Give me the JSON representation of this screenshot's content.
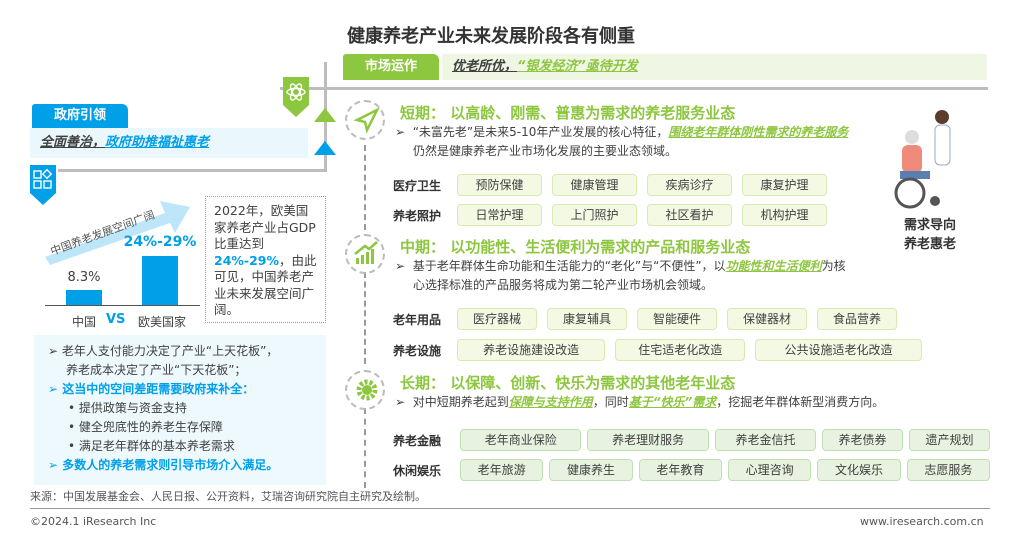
{
  "title": "健康养老产业未来发展阶段各有侧重",
  "market": {
    "label": "市场运作",
    "slogan_a": "优老所优，",
    "slogan_b": "“银发经济”亟待开发"
  },
  "government": {
    "label": "政府引领",
    "slogan_a": "全面善治，",
    "slogan_b": "政府助推福祉惠老"
  },
  "chart_data": {
    "type": "bar",
    "title": "中国养老发展空间广阔",
    "categories": [
      "中国",
      "欧美国家"
    ],
    "value_labels": [
      "8.3%",
      "24%-29%"
    ],
    "values": [
      8.3,
      26.5
    ],
    "vs": "VS"
  },
  "gdp_note": {
    "a": "2022年，欧美国家养老产业占GDP比重达到",
    "b": "24%-29%",
    "c": "，由此可见，中国养老产业未来发展空间广阔。"
  },
  "left_bullets": [
    {
      "type": "arrow",
      "text": "老年人支付能力决定了产业“上天花板”，"
    },
    {
      "type": "cont",
      "text": "养老成本决定了产业“下天花板”；"
    },
    {
      "type": "arrow-blue",
      "text": "这当中的空间差距需要政府来补全："
    },
    {
      "type": "dot",
      "text": "提供政策与资金支持"
    },
    {
      "type": "dot",
      "text": "健全兜底性的养老生存保障"
    },
    {
      "type": "dot",
      "text": "满足老年群体的基本养老需求"
    },
    {
      "type": "arrow-blue",
      "text": "多数人的养老需求则引导市场介入满足。"
    }
  ],
  "stages": [
    {
      "title": "短期： 以高龄、刚需、普惠为需求的养老服务业态",
      "icon": "paper-plane-icon",
      "desc": [
        "“未富先老”是未来5-10年产业发展的核心特征，",
        "围绕老年群体刚性需求的养老服务",
        "仍然是健康养老产业市场化发展的主要业态领域。"
      ],
      "rows": [
        {
          "label": "医疗卫生",
          "items": [
            "预防保健",
            "健康管理",
            "疾病诊疗",
            "康复护理"
          ]
        },
        {
          "label": "养老照护",
          "items": [
            "日常护理",
            "上门照护",
            "社区看护",
            "机构护理"
          ]
        }
      ]
    },
    {
      "title": "中期： 以功能性、生活便利为需求的产品和服务业态",
      "icon": "growth-chart-icon",
      "desc": [
        "基于老年群体生命功能和生活能力的“老化”与“不便性”，以",
        "功能性和生活便利",
        "为核心选择标准的产品服务将成为第二轮产业市场机会领域。"
      ],
      "rows": [
        {
          "label": "老年用品",
          "items": [
            "医疗器械",
            "康复辅具",
            "智能硬件",
            "保健器材",
            "食品营养"
          ]
        },
        {
          "label": "养老设施",
          "items": [
            "养老设施建设改造",
            "住宅适老化改造",
            "公共设施适老化改造"
          ]
        }
      ]
    },
    {
      "title": "长期： 以保障、创新、快乐为需求的其他老年业态",
      "icon": "gear-icon",
      "desc": [
        "对中短期养老起到",
        "保障与支持作用",
        "，同时",
        "基于“快乐”需求",
        "，挖掘老年群体新型消费方向。"
      ],
      "rows": [
        {
          "label": "养老金融",
          "items": [
            "老年商业保险",
            "养老理财服务",
            "养老金信托",
            "养老债券",
            "遗产规划"
          ]
        },
        {
          "label": "休闲娱乐",
          "items": [
            "老年旅游",
            "健康养生",
            "老年教育",
            "心理咨询",
            "文化娱乐",
            "志愿服务"
          ]
        }
      ]
    }
  ],
  "illustration": {
    "caption1": "需求导向",
    "caption2": "养老惠老"
  },
  "source": "来源：中国发展基金会、人民日报、公开资料，艾瑞咨询研究院自主研究及绘制。",
  "footer": {
    "copyright": "©2024.1 iResearch Inc",
    "website": "www.iresearch.com.cn"
  },
  "colors": {
    "green": "#8dc63f",
    "blue": "#00a0e9"
  }
}
